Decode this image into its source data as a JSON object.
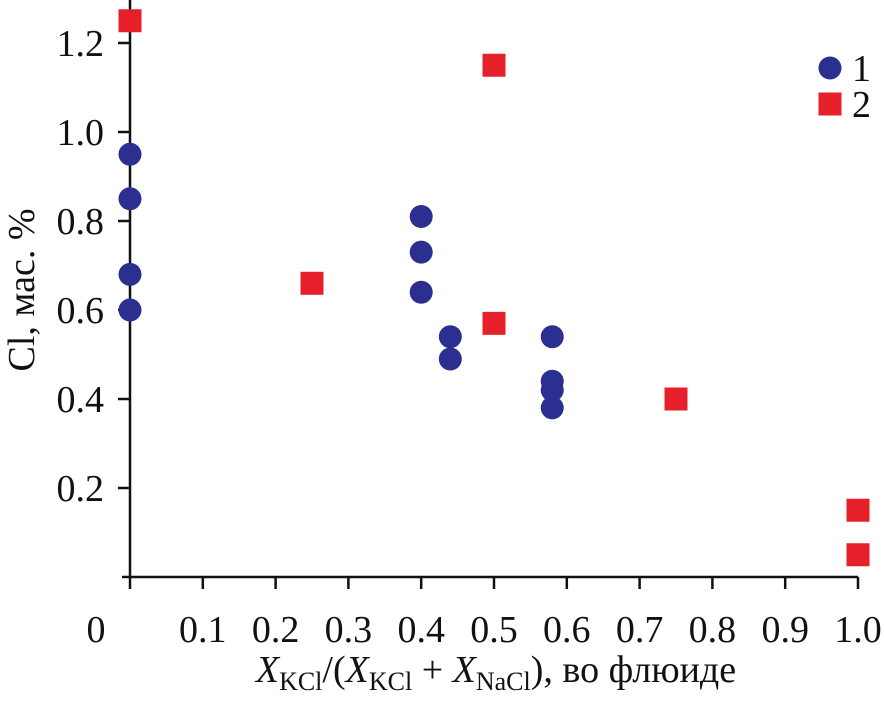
{
  "chart_data": {
    "type": "scatter",
    "title": "",
    "ylabel": "Cl, мас. %",
    "xlabel_parts": {
      "x1": "X",
      "sub1": "KCl",
      "mid": "/(",
      "x2": "X",
      "sub2": "KCl",
      "plus": " + ",
      "x3": "X",
      "sub3": "NaCl",
      "tail": "), во флюиде"
    },
    "xlim": [
      0,
      1.0
    ],
    "ylim": [
      0,
      1.25
    ],
    "x_ticks": [
      "0",
      "0.1",
      "0.2",
      "0.3",
      "0.4",
      "0.5",
      "0.6",
      "0.7",
      "0.8",
      "0.9",
      "1.0"
    ],
    "y_ticks": [
      "0.2",
      "0.4",
      "0.6",
      "0.8",
      "1.0",
      "1.2"
    ],
    "grid": false,
    "legend_position": "top-right",
    "series": [
      {
        "name": "1",
        "marker": "circle",
        "color": "#2b2f8f",
        "points": [
          [
            0.0,
            0.95
          ],
          [
            0.0,
            0.85
          ],
          [
            0.0,
            0.68
          ],
          [
            0.0,
            0.6
          ],
          [
            0.4,
            0.81
          ],
          [
            0.4,
            0.73
          ],
          [
            0.4,
            0.64
          ],
          [
            0.44,
            0.54
          ],
          [
            0.44,
            0.49
          ],
          [
            0.58,
            0.54
          ],
          [
            0.58,
            0.44
          ],
          [
            0.58,
            0.42
          ],
          [
            0.58,
            0.38
          ]
        ]
      },
      {
        "name": "2",
        "marker": "square",
        "color": "#e5202a",
        "points": [
          [
            0.0,
            1.25
          ],
          [
            0.25,
            0.66
          ],
          [
            0.5,
            1.15
          ],
          [
            0.5,
            0.57
          ],
          [
            0.75,
            0.4
          ],
          [
            1.0,
            0.15
          ],
          [
            1.0,
            0.05
          ]
        ]
      }
    ]
  }
}
